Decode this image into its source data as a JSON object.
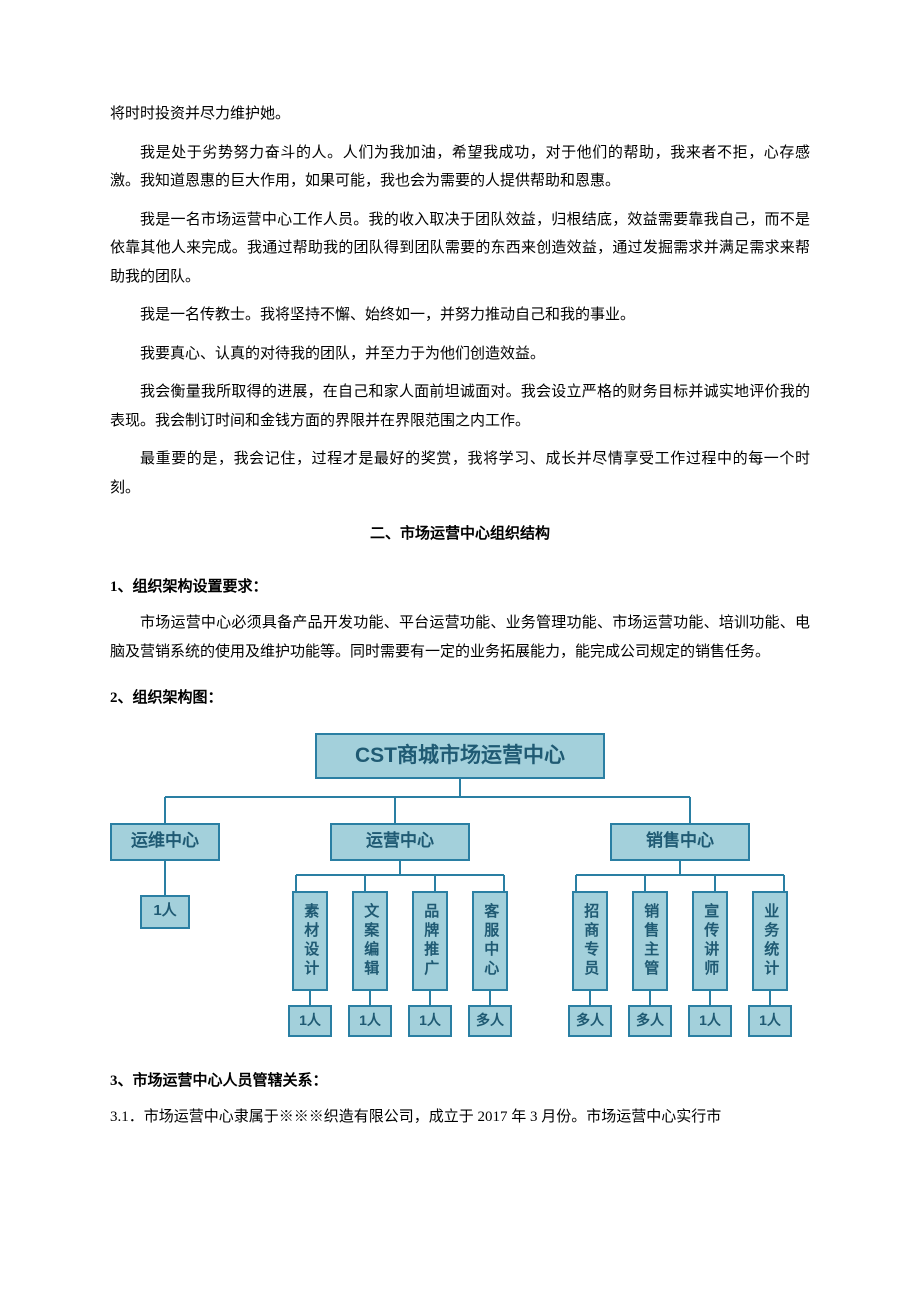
{
  "paragraphs": {
    "p0": "将时时投资并尽力维护她。",
    "p1": "我是处于劣势努力奋斗的人。人们为我加油，希望我成功，对于他们的帮助，我来者不拒，心存感激。我知道恩惠的巨大作用，如果可能，我也会为需要的人提供帮助和恩惠。",
    "p2": "我是一名市场运营中心工作人员。我的收入取决于团队效益，归根结底，效益需要靠我自己，而不是依靠其他人来完成。我通过帮助我的团队得到团队需要的东西来创造效益，通过发掘需求并满足需求来帮助我的团队。",
    "p3": "我是一名传教士。我将坚持不懈、始终如一，并努力推动自己和我的事业。",
    "p4": "我要真心、认真的对待我的团队，并至力于为他们创造效益。",
    "p5": "我会衡量我所取得的进展，在自己和家人面前坦诚面对。我会设立严格的财务目标并诚实地评价我的表现。我会制订时间和金钱方面的界限并在界限范围之内工作。",
    "p6": "最重要的是，我会记住，过程才是最好的奖赏，我将学习、成长并尽情享受工作过程中的每一个时刻。"
  },
  "section2_title": "二、市场运营中心组织结构",
  "h1": "1、组织架构设置要求：",
  "h1_body": "市场运营中心必须具备产品开发功能、平台运营功能、业务管理功能、市场运营功能、培训功能、电脑及营销系统的使用及维护功能等。同时需要有一定的业务拓展能力，能完成公司规定的销售任务。",
  "h2": "2、组织架构图：",
  "h3": "3、市场运营中心人员管辖关系：",
  "h3_body": "3.1．市场运营中心隶属于※※※织造有限公司，成立于 2017 年 3 月份。市场运营中心实行市",
  "orgchart": {
    "type": "tree",
    "colors": {
      "box_fill": "#a3d0db",
      "box_border": "#2a7fa3",
      "text": "#1f5a73",
      "line": "#2a7fa3"
    },
    "font": {
      "family": "SimHei",
      "root_size": 21,
      "mid_size": 17,
      "leaf_size": 15
    },
    "root": "CST商城市场运营中心",
    "level2": [
      {
        "label": "运维中心",
        "count": "1人"
      },
      {
        "label": "运营中心"
      },
      {
        "label": "销售中心"
      }
    ],
    "ops_children": [
      {
        "label": "素材设计",
        "count": "1人"
      },
      {
        "label": "文案编辑",
        "count": "1人"
      },
      {
        "label": "品牌推广",
        "count": "1人"
      },
      {
        "label": "客服中心",
        "count": "多人"
      }
    ],
    "sales_children": [
      {
        "label": "招商专员",
        "count": "多人"
      },
      {
        "label": "销售主管",
        "count": "多人"
      },
      {
        "label": "宣传讲师",
        "count": "1人"
      },
      {
        "label": "业务统计",
        "count": "1人"
      }
    ]
  }
}
